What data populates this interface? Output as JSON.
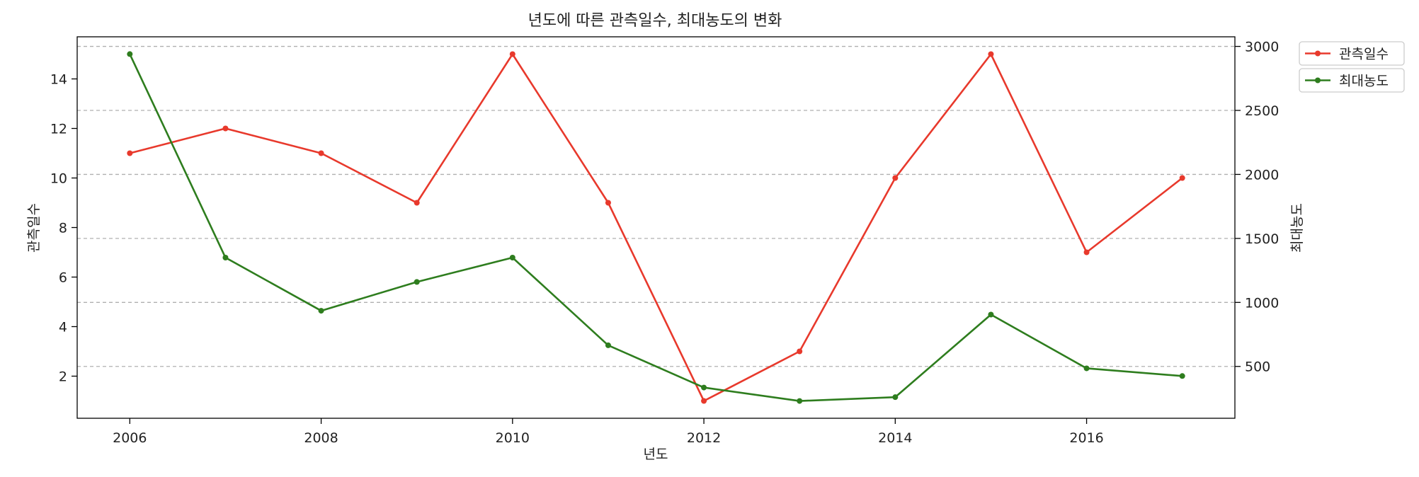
{
  "chart_data": {
    "type": "line",
    "title": "년도에 따른 관측일수, 최대농도의 변화",
    "xlabel": "년도",
    "ylabel_left": "관측일수",
    "ylabel_right": "최대농도",
    "x": [
      2006,
      2007,
      2008,
      2009,
      2010,
      2011,
      2012,
      2013,
      2014,
      2015,
      2016,
      2017
    ],
    "x_ticks": [
      2006,
      2008,
      2010,
      2012,
      2014,
      2016
    ],
    "xlim": [
      2005.45,
      2017.55
    ],
    "series": [
      {
        "name": "관측일수",
        "axis": "left",
        "color": "#e8392c",
        "values": [
          11,
          12,
          11,
          9,
          15,
          9,
          1,
          3,
          10,
          15,
          7,
          10
        ]
      },
      {
        "name": "최대농도",
        "axis": "right",
        "color": "#2e7d1e",
        "values": [
          2940,
          1350,
          935,
          1160,
          1350,
          665,
          335,
          230,
          260,
          905,
          485,
          425
        ]
      }
    ],
    "ylim_left": [
      0.3,
      15.7
    ],
    "yticks_left": [
      2,
      4,
      6,
      8,
      10,
      12,
      14
    ],
    "ylim_right": [
      95,
      3075
    ],
    "yticks_right": [
      500,
      1000,
      1500,
      2000,
      2500,
      3000
    ],
    "grid": "horizontal dashed, right axis",
    "legend_position": "outside upper-right",
    "marker": "dot"
  }
}
